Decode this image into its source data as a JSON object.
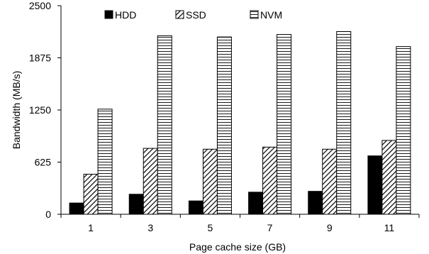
{
  "chart_data": {
    "type": "bar",
    "title": "",
    "xlabel": "Page cache size (GB)",
    "ylabel": "Bandwidth (MB/s)",
    "ylim": [
      0,
      2500
    ],
    "yticks": [
      "0",
      "625",
      "1250",
      "1875",
      "2500"
    ],
    "categories": [
      "1",
      "3",
      "5",
      "7",
      "9",
      "11"
    ],
    "series": [
      {
        "name": "HDD",
        "values": [
          135,
          240,
          160,
          265,
          275,
          700
        ],
        "pattern": "solid"
      },
      {
        "name": "SSD",
        "values": [
          480,
          790,
          780,
          805,
          780,
          885
        ],
        "pattern": "diagonal"
      },
      {
        "name": "NVM",
        "values": [
          1260,
          2140,
          2125,
          2155,
          2190,
          2010
        ],
        "pattern": "horizontal"
      }
    ],
    "legend_position": "top",
    "grid": false
  }
}
